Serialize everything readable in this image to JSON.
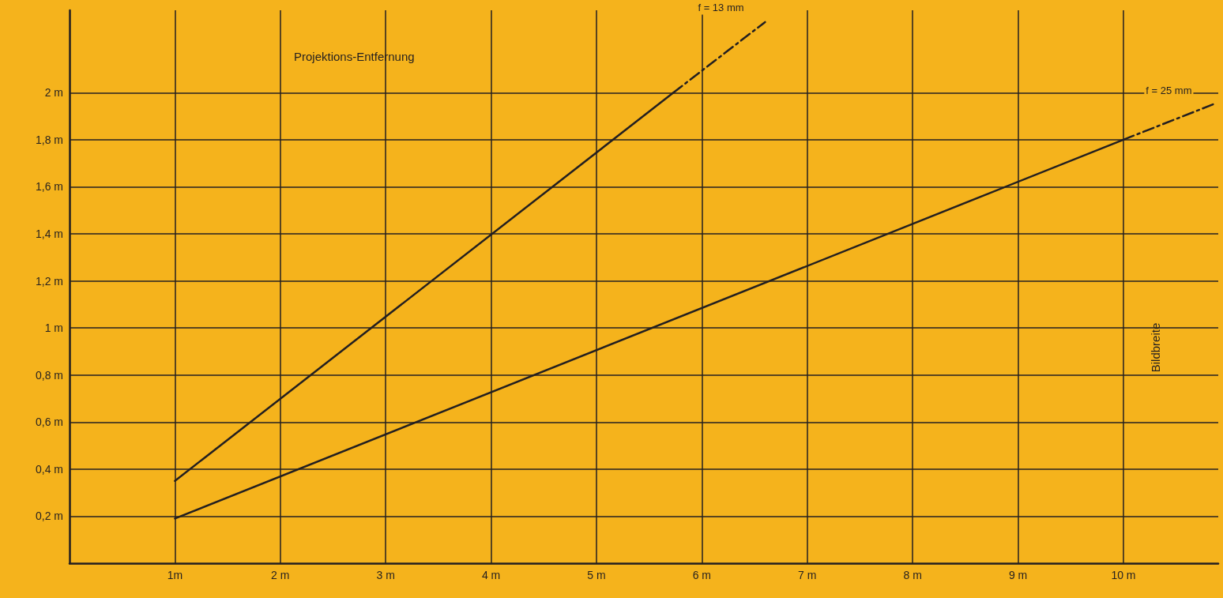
{
  "chart_data": {
    "type": "line",
    "xlabel": "Projektions-Entfernung",
    "ylabel": "Bildbreite",
    "xlim": [
      0,
      10.9
    ],
    "ylim": [
      0,
      2.35
    ],
    "xticks": [
      {
        "value": 1,
        "label": "1m"
      },
      {
        "value": 2,
        "label": "2 m"
      },
      {
        "value": 3,
        "label": "3 m"
      },
      {
        "value": 4,
        "label": "4 m"
      },
      {
        "value": 5,
        "label": "5 m"
      },
      {
        "value": 6,
        "label": "6 m"
      },
      {
        "value": 7,
        "label": "7 m"
      },
      {
        "value": 8,
        "label": "8 m"
      },
      {
        "value": 9,
        "label": "9 m"
      },
      {
        "value": 10,
        "label": "10 m"
      }
    ],
    "yticks": [
      {
        "value": 0.2,
        "label": "0,2 m"
      },
      {
        "value": 0.4,
        "label": "0,4 m"
      },
      {
        "value": 0.6,
        "label": "0,6 m"
      },
      {
        "value": 0.8,
        "label": "0,8 m"
      },
      {
        "value": 1,
        "label": "1 m"
      },
      {
        "value": 1.2,
        "label": "1,2 m"
      },
      {
        "value": 1.4,
        "label": "1,4 m"
      },
      {
        "value": 1.6,
        "label": "1,6 m"
      },
      {
        "value": 1.8,
        "label": "1,8 m"
      },
      {
        "value": 2,
        "label": "2 m"
      }
    ],
    "series": [
      {
        "color": "#231f20",
        "x": [
          1,
          5.73
        ],
        "values": [
          0.35,
          2.0
        ],
        "line_style": "solid"
      },
      {
        "name": "f = 13 mm",
        "color": "#231f20",
        "x": [
          5.73,
          6.6
        ],
        "values": [
          2.0,
          2.3
        ],
        "line_style": "dashed"
      },
      {
        "color": "#231f20",
        "x": [
          1,
          10
        ],
        "values": [
          0.19,
          1.8
        ],
        "line_style": "solid"
      },
      {
        "name": "f = 25 mm",
        "color": "#231f20",
        "x": [
          10,
          10.85
        ],
        "values": [
          1.8,
          1.95
        ],
        "line_style": "dashed"
      }
    ],
    "grid": true,
    "legend": false,
    "marker": "none"
  }
}
